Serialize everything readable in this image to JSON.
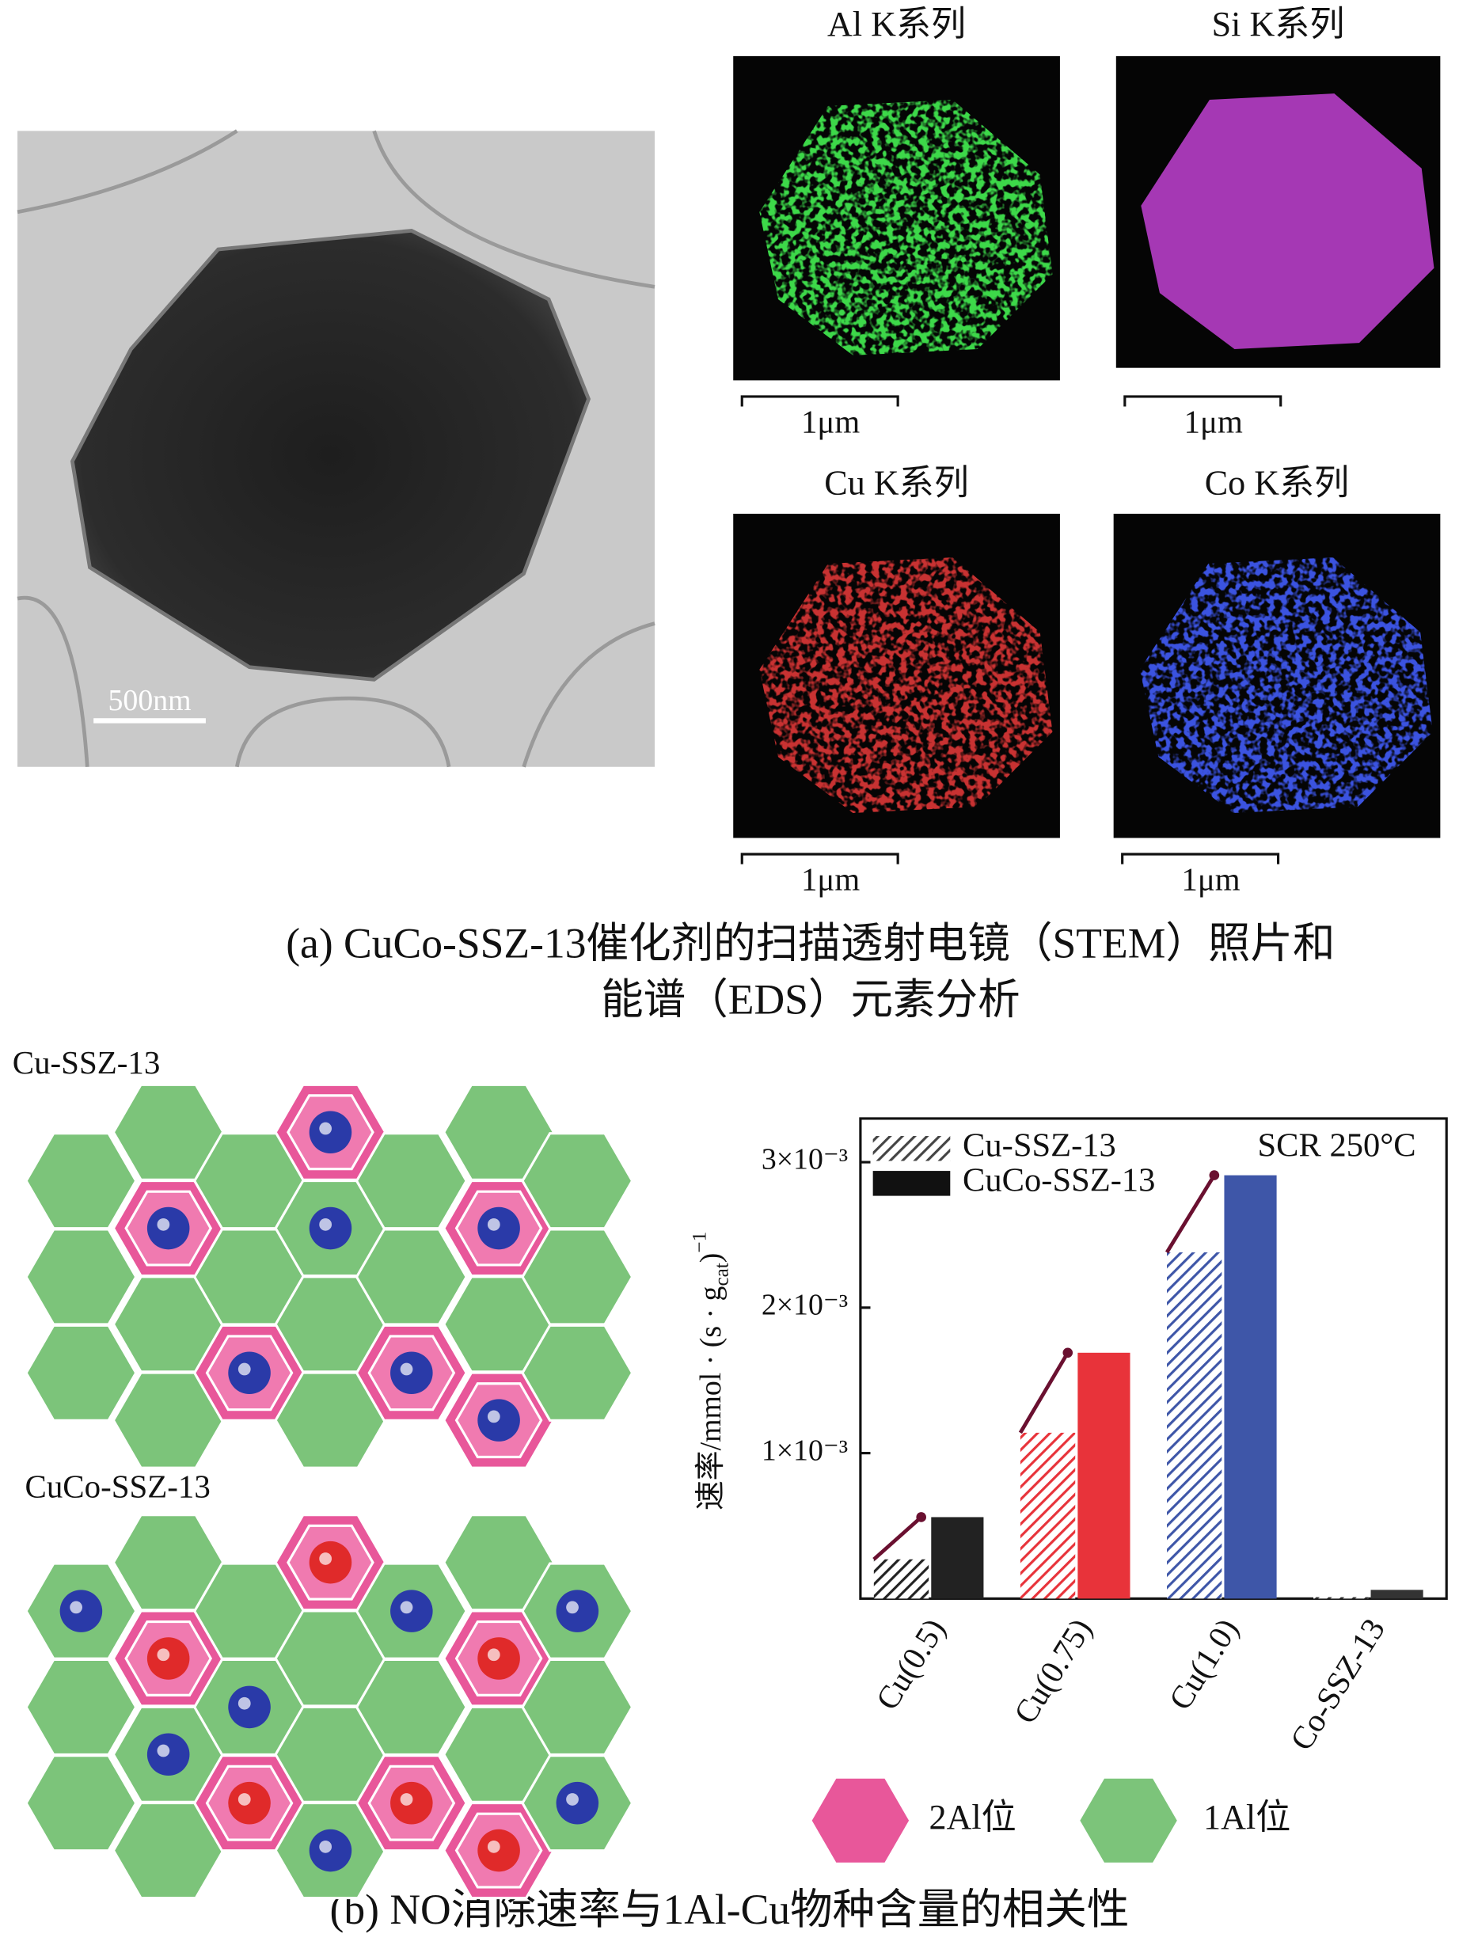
{
  "panel_a": {
    "tem_scale_bar": "500nm",
    "eds_maps": [
      {
        "title": "Al K系列",
        "scale_bar": "1μm"
      },
      {
        "title": "Si K系列",
        "scale_bar": "1μm"
      },
      {
        "title": "Cu K系列",
        "scale_bar": "1μm"
      },
      {
        "title": "Co K系列",
        "scale_bar": "1μm"
      }
    ],
    "caption": [
      "(a) CuCo-SSZ-13催化剂的扫描透射电镜（STEM）照片和",
      "能谱（EDS）元素分析"
    ]
  },
  "panel_b": {
    "lattices": [
      {
        "label": "Cu-SSZ-13"
      },
      {
        "label": "CuCo-SSZ-13"
      }
    ],
    "site_legend": [
      {
        "label": "2Al位",
        "color": "#e8579a"
      },
      {
        "label": "1Al位",
        "color": "#7cc47a"
      }
    ],
    "caption": "(b) NO消除速率与1Al-Cu物种含量的相关性"
  },
  "chart_data": {
    "type": "bar",
    "ylabel": {
      "text": "速率/mmol · (s · g",
      "sub": "cat",
      "after": ")",
      "sup": "−1"
    },
    "annotation": "SCR 250°C",
    "categories": [
      "Cu(0.5)",
      "Cu(0.75)",
      "Cu(1.0)",
      "Co-SSZ-13"
    ],
    "category_colors": [
      "#222222",
      "#e8333a",
      "#3e56a8",
      "#333333"
    ],
    "series": [
      {
        "name": "Cu-SSZ-13",
        "color": "#444444",
        "style": "hatched",
        "values": [
          0.00027,
          0.00114,
          0.00238,
          1e-05
        ]
      },
      {
        "name": "CuCo-SSZ-13",
        "color": "#111111",
        "style": "solid",
        "values": [
          0.00056,
          0.00169,
          0.00291,
          6e-05
        ]
      }
    ],
    "ylim": [
      0,
      0.0033
    ],
    "yticks": [
      {
        "value": 0.001,
        "label": "1×10⁻³"
      },
      {
        "value": 0.002,
        "label": "2×10⁻³"
      },
      {
        "value": 0.003,
        "label": "3×10⁻³"
      }
    ],
    "legend": "top-left"
  }
}
